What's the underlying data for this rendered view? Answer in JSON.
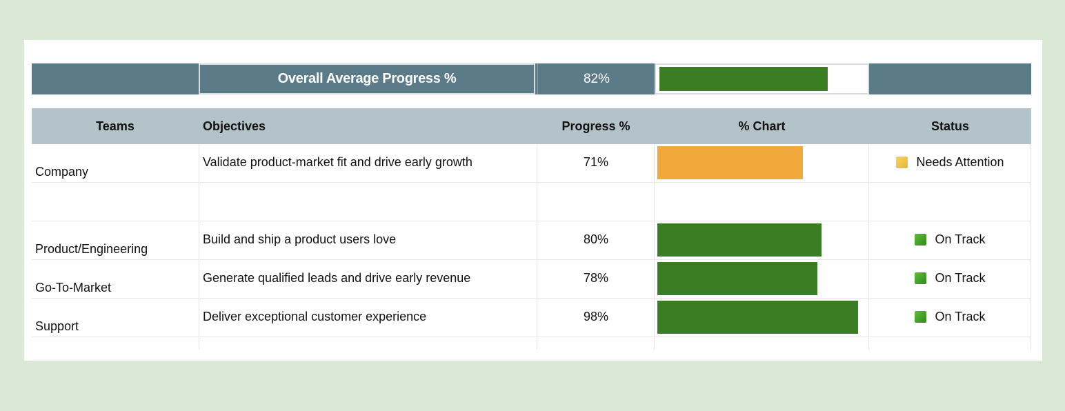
{
  "summary": {
    "label": "Overall Average Progress %",
    "value_text": "82%",
    "value": 82,
    "bar_color": "#3a7d22"
  },
  "table": {
    "headers": {
      "teams": "Teams",
      "objectives": "Objectives",
      "progress": "Progress %",
      "chart": "% Chart",
      "status": "Status"
    },
    "rows": [
      {
        "team": "Company",
        "objective": "Validate product-market fit and drive early growth",
        "progress_text": "71%",
        "progress": 71,
        "bar_color": "#f2a93b",
        "status": "Needs Attention",
        "status_icon": "yellow-square-icon"
      },
      {
        "team": "",
        "objective": "",
        "progress_text": "",
        "progress": 0,
        "bar_color": "",
        "status": "",
        "status_icon": ""
      },
      {
        "team": "Product/Engineering",
        "objective": "Build and ship a product users love",
        "progress_text": "80%",
        "progress": 80,
        "bar_color": "#3a7d22",
        "status": "On Track",
        "status_icon": "green-square-icon"
      },
      {
        "team": "Go-To-Market",
        "objective": "Generate qualified leads and drive early revenue",
        "progress_text": "78%",
        "progress": 78,
        "bar_color": "#3a7d22",
        "status": "On Track",
        "status_icon": "green-square-icon"
      },
      {
        "team": "Support",
        "objective": "Deliver exceptional customer experience",
        "progress_text": "98%",
        "progress": 98,
        "bar_color": "#3a7d22",
        "status": "On Track",
        "status_icon": "green-square-icon"
      }
    ]
  }
}
